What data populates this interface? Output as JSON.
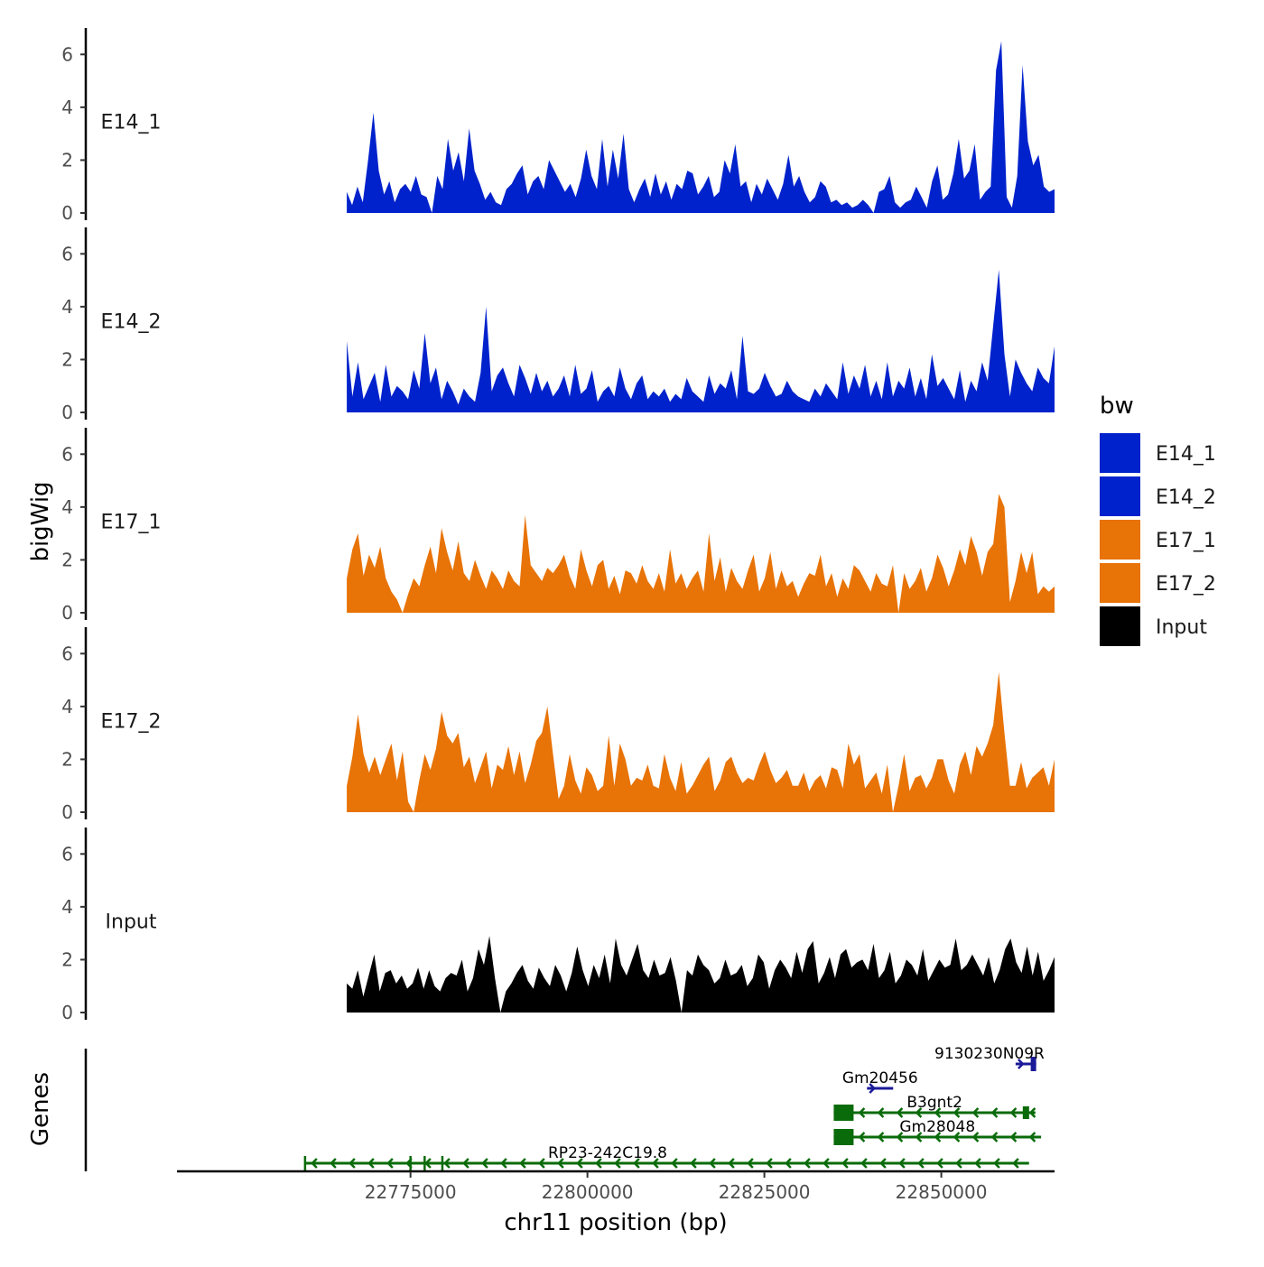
{
  "chart_data": {
    "type": "area",
    "chromosome": "chr11",
    "xlabel": "chr11 position (bp)",
    "ylabel": "bigWig",
    "genes_label": "Genes",
    "xlim": [
      22742000,
      22866000
    ],
    "plot_xlim": [
      22766000,
      22866000
    ],
    "x_ticks": [
      22775000,
      22800000,
      22825000,
      22850000
    ],
    "x_tick_labels": [
      "22775000",
      "22800000",
      "22825000",
      "22850000"
    ],
    "ylim": [
      0,
      7
    ],
    "y_ticks": [
      0,
      2,
      4,
      6
    ],
    "y_tick_labels": [
      "0",
      "2",
      "4",
      "6"
    ],
    "legend": {
      "title": "bw",
      "items": [
        {
          "label": "E14_1",
          "color": "#0022cc"
        },
        {
          "label": "E14_2",
          "color": "#0022cc"
        },
        {
          "label": "E17_1",
          "color": "#e87306"
        },
        {
          "label": "E17_2",
          "color": "#e87306"
        },
        {
          "label": "Input",
          "color": "#000000"
        }
      ]
    },
    "series": [
      {
        "name": "E14_1",
        "color": "#0022cc",
        "values": [
          0.8,
          0.3,
          1.0,
          0.4,
          2.0,
          3.8,
          1.6,
          0.7,
          1.2,
          0.4,
          0.9,
          1.1,
          0.8,
          1.4,
          0.7,
          0.6,
          0.0,
          1.4,
          0.9,
          2.8,
          1.6,
          2.3,
          1.2,
          3.2,
          1.6,
          1.1,
          0.5,
          0.8,
          0.4,
          0.3,
          0.9,
          1.1,
          1.5,
          1.8,
          0.7,
          1.2,
          1.4,
          0.9,
          2.0,
          1.6,
          1.2,
          0.8,
          1.1,
          0.6,
          1.3,
          2.4,
          1.4,
          0.9,
          2.8,
          1.0,
          2.4,
          1.3,
          3.0,
          0.9,
          0.4,
          0.9,
          1.3,
          0.6,
          1.5,
          0.7,
          1.2,
          0.5,
          1.1,
          0.9,
          1.6,
          1.5,
          0.7,
          1.0,
          1.4,
          0.6,
          0.8,
          2.0,
          1.5,
          2.6,
          1.0,
          1.2,
          0.4,
          1.1,
          0.7,
          1.3,
          0.9,
          0.5,
          1.1,
          2.2,
          1.0,
          1.4,
          0.8,
          0.4,
          0.6,
          1.2,
          1.0,
          0.4,
          0.5,
          0.3,
          0.4,
          0.2,
          0.3,
          0.5,
          0.3,
          0.0,
          0.8,
          0.9,
          1.4,
          0.4,
          0.2,
          0.4,
          0.5,
          1.0,
          0.6,
          0.2,
          1.2,
          1.8,
          0.5,
          0.7,
          1.5,
          2.8,
          1.3,
          1.6,
          2.6,
          0.5,
          0.8,
          1.0,
          5.4,
          6.5,
          0.6,
          0.2,
          1.4,
          5.6,
          2.7,
          1.8,
          2.2,
          1.0,
          0.8,
          0.9
        ]
      },
      {
        "name": "E14_2",
        "color": "#0022cc",
        "values": [
          2.7,
          0.6,
          1.9,
          0.5,
          1.0,
          1.5,
          0.4,
          1.8,
          0.6,
          1.0,
          0.8,
          0.5,
          1.6,
          0.9,
          3.0,
          1.1,
          1.7,
          0.5,
          1.2,
          0.8,
          0.3,
          0.9,
          0.6,
          0.4,
          1.5,
          4.0,
          0.8,
          1.4,
          1.7,
          1.1,
          0.6,
          1.8,
          1.3,
          0.7,
          1.5,
          0.8,
          1.2,
          0.6,
          0.9,
          1.4,
          0.6,
          1.8,
          0.7,
          0.9,
          1.6,
          0.4,
          0.8,
          1.0,
          0.6,
          1.7,
          0.9,
          0.5,
          1.1,
          1.4,
          0.5,
          0.8,
          0.6,
          0.9,
          0.4,
          0.7,
          0.5,
          1.3,
          0.8,
          0.6,
          0.4,
          1.4,
          0.7,
          1.1,
          0.9,
          1.6,
          0.5,
          2.9,
          0.8,
          0.7,
          0.9,
          1.5,
          1.0,
          0.6,
          0.7,
          1.2,
          0.8,
          0.6,
          0.5,
          0.4,
          0.9,
          0.6,
          1.1,
          0.8,
          0.5,
          1.9,
          0.7,
          1.4,
          0.9,
          1.8,
          0.6,
          1.2,
          0.5,
          1.9,
          0.6,
          1.2,
          0.9,
          1.7,
          0.6,
          1.3,
          0.5,
          2.2,
          1.0,
          1.3,
          0.9,
          0.5,
          1.6,
          0.4,
          1.2,
          0.8,
          1.9,
          1.2,
          3.3,
          5.4,
          2.2,
          0.6,
          2.0,
          1.5,
          1.1,
          0.8,
          1.7,
          1.3,
          1.1,
          2.5
        ]
      },
      {
        "name": "E17_1",
        "color": "#e87306",
        "values": [
          1.3,
          2.4,
          3.0,
          1.4,
          2.2,
          1.7,
          2.5,
          1.3,
          0.8,
          0.5,
          0.0,
          0.7,
          1.3,
          1.0,
          1.8,
          2.5,
          1.5,
          3.2,
          2.3,
          1.6,
          2.7,
          1.5,
          1.2,
          2.0,
          1.4,
          0.9,
          1.6,
          1.3,
          0.9,
          1.6,
          1.2,
          1.0,
          3.7,
          1.8,
          1.5,
          1.2,
          1.7,
          1.5,
          1.8,
          2.2,
          1.4,
          0.9,
          2.4,
          1.6,
          1.0,
          1.8,
          2.0,
          0.9,
          1.4,
          0.7,
          1.6,
          1.5,
          1.1,
          1.8,
          1.2,
          0.9,
          1.5,
          0.8,
          2.4,
          1.1,
          1.5,
          0.9,
          1.3,
          1.6,
          0.8,
          3.0,
          1.2,
          2.1,
          0.8,
          1.7,
          1.2,
          0.9,
          1.6,
          2.2,
          0.8,
          1.3,
          2.3,
          0.9,
          1.6,
          1.0,
          1.2,
          0.6,
          1.1,
          1.5,
          1.4,
          2.2,
          1.0,
          1.5,
          0.6,
          1.3,
          0.9,
          1.8,
          1.6,
          1.2,
          0.8,
          1.5,
          1.1,
          1.0,
          1.8,
          0.0,
          1.5,
          0.9,
          1.2,
          1.7,
          0.8,
          1.3,
          2.2,
          1.7,
          1.0,
          1.6,
          2.4,
          1.8,
          2.9,
          2.3,
          1.4,
          2.3,
          2.6,
          4.5,
          4.0,
          0.4,
          1.2,
          2.3,
          1.5,
          2.3,
          0.7,
          1.0,
          0.8,
          1.0
        ]
      },
      {
        "name": "E17_2",
        "color": "#e87306",
        "values": [
          1.0,
          2.1,
          3.7,
          2.2,
          1.5,
          2.1,
          1.4,
          2.0,
          2.6,
          1.2,
          2.3,
          0.4,
          0.0,
          1.2,
          2.2,
          1.6,
          2.4,
          3.8,
          2.9,
          2.6,
          3.0,
          1.7,
          2.1,
          1.1,
          1.7,
          2.3,
          0.9,
          1.8,
          1.6,
          2.5,
          1.4,
          2.3,
          1.1,
          1.8,
          2.7,
          3.0,
          4.0,
          2.2,
          0.5,
          1.0,
          2.2,
          1.2,
          0.7,
          1.7,
          1.4,
          0.8,
          1.0,
          2.9,
          1.0,
          2.6,
          2.0,
          1.0,
          1.3,
          1.2,
          1.8,
          1.0,
          0.9,
          2.2,
          1.3,
          0.8,
          1.9,
          0.7,
          1.0,
          1.4,
          1.8,
          2.1,
          0.8,
          1.2,
          1.9,
          2.1,
          1.5,
          1.1,
          1.3,
          1.2,
          1.8,
          2.3,
          1.6,
          1.1,
          1.3,
          1.6,
          1.0,
          1.0,
          1.5,
          0.8,
          1.2,
          1.4,
          0.9,
          1.7,
          1.6,
          0.9,
          2.6,
          1.8,
          2.2,
          0.9,
          1.2,
          1.5,
          0.7,
          1.8,
          0.0,
          1.0,
          2.2,
          0.8,
          1.3,
          1.4,
          0.9,
          1.3,
          2.0,
          2.0,
          1.2,
          0.7,
          1.8,
          2.3,
          1.4,
          2.5,
          2.1,
          2.6,
          3.3,
          5.3,
          3.0,
          1.0,
          1.0,
          1.9,
          0.9,
          1.3,
          1.5,
          1.7,
          1.0,
          2.0
        ]
      },
      {
        "name": "Input",
        "color": "#000000",
        "values": [
          1.1,
          0.9,
          1.6,
          0.6,
          1.4,
          2.2,
          0.8,
          1.5,
          1.6,
          1.1,
          1.4,
          0.9,
          1.1,
          1.7,
          0.9,
          1.6,
          1.0,
          0.8,
          1.3,
          1.5,
          1.4,
          2.0,
          0.8,
          1.3,
          2.4,
          1.8,
          2.9,
          1.3,
          0.0,
          0.8,
          1.1,
          1.5,
          1.8,
          1.2,
          0.9,
          1.7,
          1.3,
          1.0,
          1.8,
          1.4,
          0.8,
          1.5,
          2.5,
          1.6,
          1.0,
          1.8,
          1.3,
          2.2,
          1.1,
          2.8,
          1.8,
          1.4,
          2.0,
          2.6,
          1.6,
          1.3,
          2.0,
          1.4,
          1.5,
          2.1,
          1.2,
          0.0,
          1.6,
          1.4,
          2.2,
          1.8,
          1.6,
          1.1,
          1.3,
          2.0,
          1.4,
          1.5,
          1.8,
          1.0,
          1.3,
          2.2,
          1.9,
          0.9,
          1.6,
          2.0,
          1.7,
          1.3,
          2.3,
          1.5,
          2.4,
          2.7,
          1.1,
          1.5,
          2.1,
          1.3,
          2.2,
          2.4,
          1.7,
          1.9,
          2.0,
          1.6,
          2.6,
          1.3,
          1.6,
          2.3,
          1.1,
          1.4,
          2.0,
          1.8,
          1.4,
          2.4,
          1.2,
          1.6,
          2.0,
          1.7,
          1.8,
          2.8,
          1.6,
          1.8,
          2.2,
          1.8,
          1.4,
          2.1,
          1.1,
          1.6,
          2.4,
          2.8,
          1.9,
          1.5,
          2.5,
          1.4,
          2.3,
          1.2,
          1.6,
          2.1
        ]
      }
    ],
    "genes": [
      {
        "name": "9130230N09Rik",
        "label": "9130230N09R",
        "start": 22860500,
        "end": 22863400,
        "strand": "+",
        "color": "#1b1b9a",
        "row": 4
      },
      {
        "name": "Gm20456",
        "label": "Gm20456",
        "start": 22839500,
        "end": 22843200,
        "strand": "+",
        "color": "#1b1b9a",
        "row": 3
      },
      {
        "name": "B3gnt2",
        "label": "B3gnt2",
        "start": 22834800,
        "end": 22863300,
        "strand": "-",
        "color": "#0a6b0a",
        "row": 2
      },
      {
        "name": "Gm28048",
        "label": "Gm28048",
        "start": 22834800,
        "end": 22864100,
        "strand": "-",
        "color": "#0a6b0a",
        "row": 1
      },
      {
        "name": "RP23-242C19.8",
        "label": "RP23-242C19.8",
        "start": 22760100,
        "end": 22862400,
        "strand": "-",
        "color": "#0a6b0a",
        "row": 0
      }
    ]
  }
}
